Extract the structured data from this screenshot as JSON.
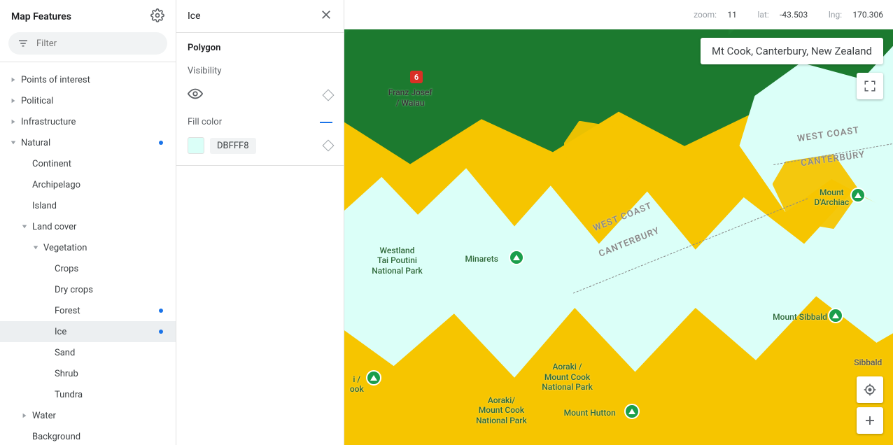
{
  "sidebar": {
    "title": "Map Features",
    "filter_placeholder": "Filter",
    "tree": [
      {
        "label": "Points of interest",
        "indent": 0,
        "chev": "right",
        "dot": false,
        "selected": false
      },
      {
        "label": "Political",
        "indent": 0,
        "chev": "right",
        "dot": false,
        "selected": false
      },
      {
        "label": "Infrastructure",
        "indent": 0,
        "chev": "right",
        "dot": false,
        "selected": false
      },
      {
        "label": "Natural",
        "indent": 0,
        "chev": "down",
        "dot": true,
        "selected": false
      },
      {
        "label": "Continent",
        "indent": 1,
        "chev": "",
        "dot": false,
        "selected": false
      },
      {
        "label": "Archipelago",
        "indent": 1,
        "chev": "",
        "dot": false,
        "selected": false
      },
      {
        "label": "Island",
        "indent": 1,
        "chev": "",
        "dot": false,
        "selected": false
      },
      {
        "label": "Land cover",
        "indent": 1,
        "chev": "down",
        "dot": false,
        "selected": false
      },
      {
        "label": "Vegetation",
        "indent": 2,
        "chev": "down",
        "dot": false,
        "selected": false
      },
      {
        "label": "Crops",
        "indent": 3,
        "chev": "",
        "dot": false,
        "selected": false
      },
      {
        "label": "Dry crops",
        "indent": 3,
        "chev": "",
        "dot": false,
        "selected": false
      },
      {
        "label": "Forest",
        "indent": 3,
        "chev": "",
        "dot": true,
        "selected": false
      },
      {
        "label": "Ice",
        "indent": 3,
        "chev": "",
        "dot": true,
        "selected": true
      },
      {
        "label": "Sand",
        "indent": 3,
        "chev": "",
        "dot": false,
        "selected": false
      },
      {
        "label": "Shrub",
        "indent": 3,
        "chev": "",
        "dot": false,
        "selected": false
      },
      {
        "label": "Tundra",
        "indent": 3,
        "chev": "",
        "dot": false,
        "selected": false
      },
      {
        "label": "Water",
        "indent": 1,
        "chev": "right",
        "dot": false,
        "selected": false
      },
      {
        "label": "Background",
        "indent": 1,
        "chev": "",
        "dot": false,
        "selected": false
      }
    ]
  },
  "detail": {
    "title": "Ice",
    "section": "Polygon",
    "visibility_label": "Visibility",
    "fill_label": "Fill color",
    "fill_hex": "DBFFF8",
    "fill_swatch": "#dbfff8",
    "accent": "#1a73e8"
  },
  "map": {
    "zoom_label": "zoom:",
    "zoom_value": "11",
    "lat_label": "lat:",
    "lat_value": "-43.503",
    "lng_label": "lng:",
    "lng_value": "170.306",
    "search_value": "Mt Cook, Canterbury, New Zealand",
    "road_badge": "6",
    "labels": {
      "franz": "Franz Josef\n/ Waiau",
      "westland": "Westland\nTai Poutini\nNational Park",
      "minarets": "Minarets",
      "darchiac": "Mount\nD'Archiac",
      "sibbald_mt": "Mount Sibbald",
      "aoraki1": "Aoraki /\nMount Cook\nNational Park",
      "aoraki2": "Aoraki/\nMount Cook\nNational Park",
      "hutton": "Mount Hutton",
      "sibbald": "Sibbald",
      "cook_peak": "i /\nook"
    },
    "regions": {
      "wc1": "WEST COAST",
      "cb1": "CANTERBURY",
      "wc2": "WEST COAST",
      "cb2": "CANTERBURY"
    },
    "colors": {
      "land": "#f6c500",
      "forest": "#1c7a2f",
      "ice": "#dbfff8"
    }
  }
}
